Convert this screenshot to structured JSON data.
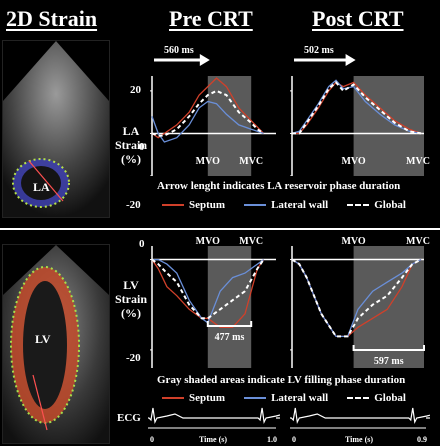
{
  "headings": {
    "strain": "2D Strain",
    "pre": "Pre CRT",
    "post": "Post CRT"
  },
  "la_row": {
    "label": [
      "LA",
      "Strain",
      "(%)"
    ],
    "echo_label": "LA",
    "y_ticks": [
      "20",
      "0",
      "-20"
    ],
    "pre_arrow_label": "560 ms",
    "post_arrow_label": "502 ms",
    "pre_markers": [
      "MVO",
      "MVC"
    ],
    "post_markers": [
      "MVO",
      "MVC"
    ],
    "caption": "Arrow lenght indicates LA reservoir phase duration"
  },
  "lv_row": {
    "label": [
      "LV",
      "Strain",
      "(%)"
    ],
    "echo_label": "LV",
    "y_ticks": [
      "0",
      "-20"
    ],
    "pre_markers": [
      "MVO",
      "MVC"
    ],
    "post_markers": [
      "MVO",
      "MVC"
    ],
    "pre_bracket_label": "477 ms",
    "post_bracket_label": "597 ms",
    "caption": "Gray shaded areas indicate LV filling phase duration"
  },
  "legend": {
    "septum": "Septum",
    "lateral": "Lateral wall",
    "global": "Global"
  },
  "ecg": {
    "label": "ECG",
    "pre_ticks": [
      "0",
      "Time (s)",
      "1.0"
    ],
    "post_ticks": [
      "0",
      "Time (s)",
      "0.9"
    ]
  },
  "colors": {
    "septum": "#d0402a",
    "lateral": "#6a8fd8",
    "global": "#ffffff",
    "shade": "#5a5a5a",
    "background": "#000000"
  },
  "chart_data": [
    {
      "type": "line",
      "title": "Pre CRT",
      "ylabel": "LA Strain (%)",
      "ylim": [
        -20,
        27
      ],
      "x_unit": "s",
      "xlim": [
        0,
        1.0
      ],
      "shaded_region": [
        0.45,
        0.8
      ],
      "annotation_arrow_ms": 560,
      "series": [
        {
          "name": "Septum",
          "x": [
            0,
            0.05,
            0.1,
            0.2,
            0.3,
            0.38,
            0.45,
            0.52,
            0.6,
            0.7,
            0.8,
            0.85,
            0.9
          ],
          "y": [
            0,
            -2,
            0,
            4,
            10,
            18,
            22,
            26,
            22,
            12,
            6,
            3,
            0
          ]
        },
        {
          "name": "Lateral wall",
          "x": [
            0,
            0.05,
            0.1,
            0.2,
            0.3,
            0.38,
            0.45,
            0.52,
            0.6,
            0.7,
            0.8,
            0.85,
            0.9
          ],
          "y": [
            8,
            0,
            -4,
            -2,
            4,
            12,
            15,
            14,
            9,
            4,
            2,
            1,
            0
          ]
        },
        {
          "name": "Global",
          "x": [
            0,
            0.05,
            0.1,
            0.2,
            0.3,
            0.38,
            0.45,
            0.52,
            0.6,
            0.7,
            0.8,
            0.85,
            0.9
          ],
          "y": [
            0,
            -1,
            -1,
            2,
            8,
            14,
            18,
            20,
            18,
            10,
            5,
            2,
            0
          ]
        }
      ]
    },
    {
      "type": "line",
      "title": "Post CRT",
      "ylabel": "LA Strain (%)",
      "ylim": [
        -20,
        27
      ],
      "x_unit": "s",
      "xlim": [
        0,
        0.9
      ],
      "shaded_region": [
        0.42,
        0.9
      ],
      "annotation_arrow_ms": 502,
      "series": [
        {
          "name": "Septum",
          "x": [
            0,
            0.05,
            0.1,
            0.18,
            0.25,
            0.3,
            0.35,
            0.42,
            0.5,
            0.6,
            0.7,
            0.8,
            0.88
          ],
          "y": [
            0,
            0,
            4,
            12,
            20,
            24,
            22,
            24,
            18,
            12,
            6,
            2,
            0
          ]
        },
        {
          "name": "Lateral wall",
          "x": [
            0,
            0.05,
            0.1,
            0.18,
            0.25,
            0.3,
            0.35,
            0.42,
            0.5,
            0.6,
            0.7,
            0.8,
            0.88
          ],
          "y": [
            0,
            1,
            6,
            14,
            22,
            25,
            21,
            22,
            15,
            9,
            4,
            1,
            0
          ]
        },
        {
          "name": "Global",
          "x": [
            0,
            0.05,
            0.1,
            0.18,
            0.25,
            0.3,
            0.35,
            0.42,
            0.5,
            0.6,
            0.7,
            0.8,
            0.88
          ],
          "y": [
            0,
            0,
            5,
            13,
            21,
            24,
            20,
            23,
            17,
            11,
            5,
            1,
            0
          ]
        }
      ]
    },
    {
      "type": "line",
      "title": "Pre CRT",
      "ylabel": "LV Strain (%)",
      "ylim": [
        -24,
        3
      ],
      "x_unit": "s",
      "xlim": [
        0,
        1.0
      ],
      "shaded_region": [
        0.45,
        0.8
      ],
      "annotation_bracket_ms": 477,
      "series": [
        {
          "name": "Septum",
          "x": [
            0,
            0.05,
            0.12,
            0.2,
            0.3,
            0.4,
            0.45,
            0.55,
            0.65,
            0.75,
            0.85,
            0.9
          ],
          "y": [
            0,
            -2,
            -6,
            -8,
            -11,
            -13,
            -13,
            -15,
            -15,
            -12,
            -2,
            0
          ]
        },
        {
          "name": "Lateral wall",
          "x": [
            0,
            0.05,
            0.12,
            0.2,
            0.3,
            0.4,
            0.45,
            0.55,
            0.65,
            0.75,
            0.85,
            0.9
          ],
          "y": [
            0,
            0,
            -1,
            -3,
            -9,
            -13,
            -14,
            -7,
            -4,
            -3,
            -1,
            0
          ]
        },
        {
          "name": "Global",
          "x": [
            0,
            0.05,
            0.12,
            0.2,
            0.3,
            0.4,
            0.45,
            0.55,
            0.65,
            0.75,
            0.85,
            0.9
          ],
          "y": [
            0,
            -1,
            -3,
            -5,
            -10,
            -13,
            -13,
            -11,
            -9,
            -7,
            -2,
            0
          ]
        }
      ]
    },
    {
      "type": "line",
      "title": "Post CRT",
      "ylabel": "LV Strain (%)",
      "ylim": [
        -24,
        3
      ],
      "x_unit": "s",
      "xlim": [
        0,
        0.9
      ],
      "shaded_region": [
        0.42,
        0.9
      ],
      "annotation_bracket_ms": 597,
      "series": [
        {
          "name": "Septum",
          "x": [
            0,
            0.05,
            0.1,
            0.2,
            0.3,
            0.38,
            0.45,
            0.55,
            0.65,
            0.75,
            0.82,
            0.88
          ],
          "y": [
            0,
            -1,
            -4,
            -12,
            -17,
            -17,
            -15,
            -13,
            -11,
            -6,
            -1,
            0
          ]
        },
        {
          "name": "Lateral wall",
          "x": [
            0,
            0.05,
            0.1,
            0.2,
            0.3,
            0.38,
            0.45,
            0.55,
            0.65,
            0.75,
            0.82,
            0.88
          ],
          "y": [
            0,
            -1,
            -4,
            -12,
            -17,
            -17,
            -11,
            -7,
            -5,
            -3,
            -1,
            0
          ]
        },
        {
          "name": "Global",
          "x": [
            0,
            0.05,
            0.1,
            0.2,
            0.3,
            0.38,
            0.45,
            0.55,
            0.65,
            0.75,
            0.82,
            0.88
          ],
          "y": [
            0,
            -1,
            -4,
            -12,
            -17,
            -17,
            -13,
            -10,
            -8,
            -4,
            -1,
            0
          ]
        }
      ]
    }
  ]
}
